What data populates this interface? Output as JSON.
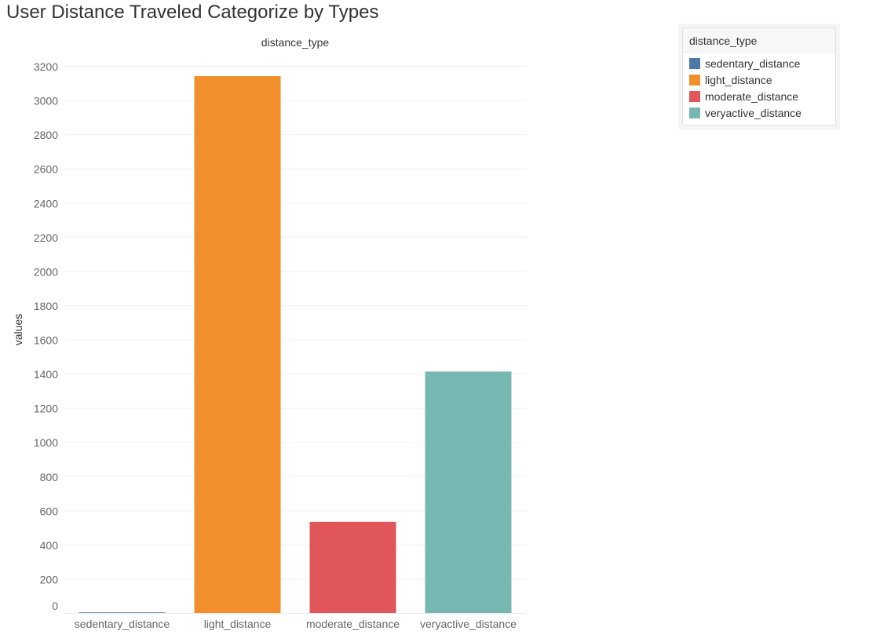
{
  "title": "User Distance Traveled Categorize by Types",
  "chart_data": {
    "type": "bar",
    "column_header": "distance_type",
    "ylabel": "values",
    "xlabel": "",
    "categories": [
      "sedentary_distance",
      "light_distance",
      "moderate_distance",
      "veryactive_distance"
    ],
    "values": [
      3,
      3140,
      533,
      1412
    ],
    "colors": [
      "#4e79a7",
      "#f28e2b",
      "#e15759",
      "#76b7b2"
    ],
    "ylim": [
      0,
      3200
    ],
    "yticks": [
      0,
      200,
      400,
      600,
      800,
      1000,
      1200,
      1400,
      1600,
      1800,
      2000,
      2200,
      2400,
      2600,
      2800,
      3000,
      3200
    ],
    "grid": true,
    "legend_position": "top-right"
  },
  "legend": {
    "title": "distance_type",
    "items": [
      {
        "label": "sedentary_distance",
        "color": "#4e79a7"
      },
      {
        "label": "light_distance",
        "color": "#f28e2b"
      },
      {
        "label": "moderate_distance",
        "color": "#e15759"
      },
      {
        "label": "veryactive_distance",
        "color": "#76b7b2"
      }
    ]
  }
}
